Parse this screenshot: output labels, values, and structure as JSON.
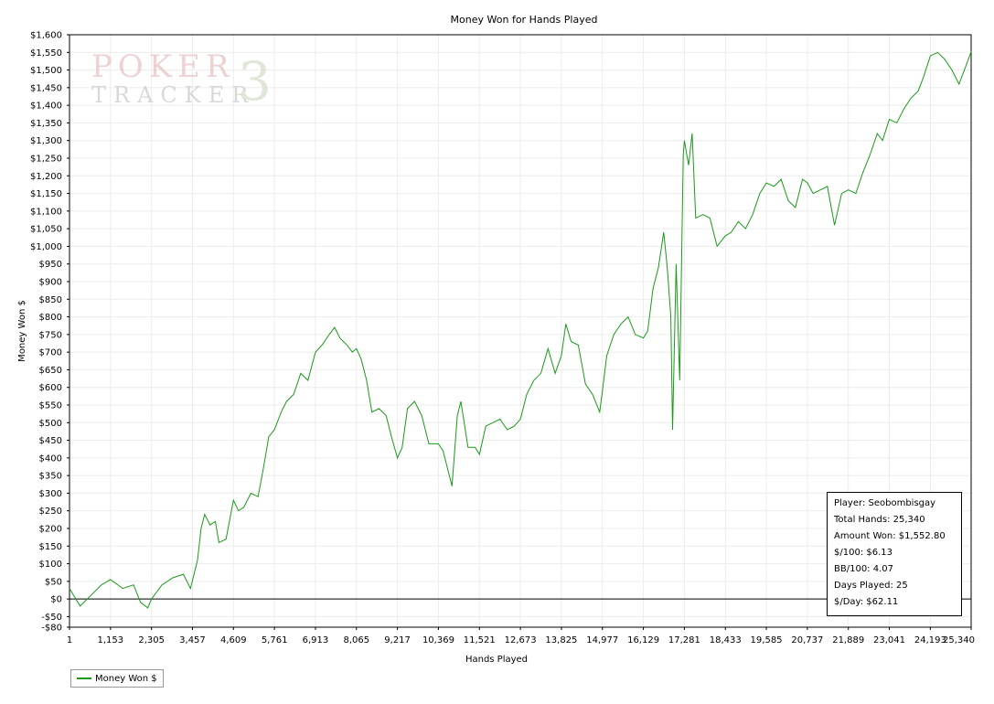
{
  "chart_data": {
    "type": "line",
    "title": "Money Won for Hands Played",
    "xlabel": "Hands Played",
    "ylabel": "Money Won $",
    "xlim": [
      1,
      25340
    ],
    "ylim": [
      -80,
      1600
    ],
    "x_ticks": [
      1,
      1153,
      2305,
      3457,
      4609,
      5761,
      6913,
      8065,
      9217,
      10369,
      11521,
      12673,
      13825,
      14977,
      16129,
      17281,
      18433,
      19585,
      20737,
      21889,
      23041,
      24193,
      25340
    ],
    "x_tick_labels": [
      "1",
      "1,153",
      "2,305",
      "3,457",
      "4,609",
      "5,761",
      "6,913",
      "8,065",
      "9,217",
      "10,369",
      "11,521",
      "12,673",
      "13,825",
      "14,977",
      "16,129",
      "17,281",
      "18,433",
      "19,585",
      "20,737",
      "21,889",
      "23,041",
      "24,193",
      "25,340"
    ],
    "y_ticks": [
      -80,
      -50,
      0,
      50,
      100,
      150,
      200,
      250,
      300,
      350,
      400,
      450,
      500,
      550,
      600,
      650,
      700,
      750,
      800,
      850,
      900,
      950,
      1000,
      1050,
      1100,
      1150,
      1200,
      1250,
      1300,
      1350,
      1400,
      1450,
      1500,
      1550,
      1600
    ],
    "y_tick_labels": [
      "-$80",
      "-$50",
      "$0",
      "$50",
      "$100",
      "$150",
      "$200",
      "$250",
      "$300",
      "$350",
      "$400",
      "$450",
      "$500",
      "$550",
      "$600",
      "$650",
      "$700",
      "$750",
      "$800",
      "$850",
      "$900",
      "$950",
      "$1,000",
      "$1,050",
      "$1,100",
      "$1,150",
      "$1,200",
      "$1,250",
      "$1,300",
      "$1,350",
      "$1,400",
      "$1,450",
      "$1,500",
      "$1,550",
      "$1,600"
    ],
    "grid": true,
    "legend_position": "bottom-left",
    "series": [
      {
        "name": "Money Won $",
        "color": "#1a9a1a",
        "points": [
          [
            1,
            30
          ],
          [
            300,
            -20
          ],
          [
            600,
            10
          ],
          [
            900,
            40
          ],
          [
            1153,
            55
          ],
          [
            1500,
            30
          ],
          [
            1800,
            40
          ],
          [
            2000,
            -10
          ],
          [
            2200,
            -25
          ],
          [
            2305,
            0
          ],
          [
            2600,
            40
          ],
          [
            2900,
            60
          ],
          [
            3200,
            70
          ],
          [
            3400,
            30
          ],
          [
            3600,
            110
          ],
          [
            3700,
            200
          ],
          [
            3800,
            240
          ],
          [
            3950,
            210
          ],
          [
            4100,
            220
          ],
          [
            4200,
            160
          ],
          [
            4400,
            170
          ],
          [
            4609,
            280
          ],
          [
            4750,
            250
          ],
          [
            4900,
            260
          ],
          [
            5100,
            300
          ],
          [
            5300,
            290
          ],
          [
            5450,
            370
          ],
          [
            5600,
            460
          ],
          [
            5761,
            480
          ],
          [
            5950,
            530
          ],
          [
            6100,
            560
          ],
          [
            6300,
            580
          ],
          [
            6500,
            640
          ],
          [
            6700,
            620
          ],
          [
            6913,
            700
          ],
          [
            7100,
            720
          ],
          [
            7300,
            750
          ],
          [
            7450,
            770
          ],
          [
            7600,
            740
          ],
          [
            7800,
            720
          ],
          [
            7950,
            700
          ],
          [
            8065,
            710
          ],
          [
            8200,
            680
          ],
          [
            8350,
            620
          ],
          [
            8500,
            530
          ],
          [
            8700,
            540
          ],
          [
            8900,
            520
          ],
          [
            9050,
            460
          ],
          [
            9217,
            400
          ],
          [
            9350,
            430
          ],
          [
            9500,
            540
          ],
          [
            9700,
            560
          ],
          [
            9900,
            520
          ],
          [
            10100,
            440
          ],
          [
            10369,
            440
          ],
          [
            10500,
            420
          ],
          [
            10650,
            360
          ],
          [
            10750,
            320
          ],
          [
            10900,
            520
          ],
          [
            11000,
            560
          ],
          [
            11200,
            430
          ],
          [
            11400,
            430
          ],
          [
            11521,
            410
          ],
          [
            11700,
            490
          ],
          [
            11900,
            500
          ],
          [
            12100,
            510
          ],
          [
            12300,
            480
          ],
          [
            12500,
            490
          ],
          [
            12673,
            510
          ],
          [
            12850,
            580
          ],
          [
            13050,
            620
          ],
          [
            13250,
            640
          ],
          [
            13450,
            710
          ],
          [
            13650,
            640
          ],
          [
            13825,
            690
          ],
          [
            13950,
            780
          ],
          [
            14100,
            730
          ],
          [
            14300,
            720
          ],
          [
            14500,
            610
          ],
          [
            14700,
            580
          ],
          [
            14900,
            530
          ],
          [
            14977,
            590
          ],
          [
            15100,
            690
          ],
          [
            15300,
            750
          ],
          [
            15500,
            780
          ],
          [
            15700,
            800
          ],
          [
            15900,
            750
          ],
          [
            16129,
            740
          ],
          [
            16250,
            760
          ],
          [
            16400,
            880
          ],
          [
            16550,
            940
          ],
          [
            16700,
            1040
          ],
          [
            16800,
            940
          ],
          [
            16900,
            800
          ],
          [
            16950,
            480
          ],
          [
            17050,
            950
          ],
          [
            17150,
            620
          ],
          [
            17250,
            1260
          ],
          [
            17281,
            1300
          ],
          [
            17400,
            1230
          ],
          [
            17500,
            1320
          ],
          [
            17600,
            1080
          ],
          [
            17800,
            1090
          ],
          [
            18000,
            1080
          ],
          [
            18200,
            1000
          ],
          [
            18433,
            1030
          ],
          [
            18600,
            1040
          ],
          [
            18800,
            1070
          ],
          [
            19000,
            1050
          ],
          [
            19200,
            1090
          ],
          [
            19400,
            1150
          ],
          [
            19585,
            1180
          ],
          [
            19800,
            1170
          ],
          [
            20000,
            1190
          ],
          [
            20200,
            1130
          ],
          [
            20400,
            1110
          ],
          [
            20600,
            1190
          ],
          [
            20737,
            1180
          ],
          [
            20900,
            1150
          ],
          [
            21100,
            1160
          ],
          [
            21300,
            1170
          ],
          [
            21500,
            1060
          ],
          [
            21700,
            1150
          ],
          [
            21889,
            1160
          ],
          [
            22100,
            1150
          ],
          [
            22300,
            1210
          ],
          [
            22500,
            1260
          ],
          [
            22700,
            1320
          ],
          [
            22850,
            1300
          ],
          [
            23041,
            1360
          ],
          [
            23250,
            1350
          ],
          [
            23450,
            1390
          ],
          [
            23650,
            1420
          ],
          [
            23850,
            1440
          ],
          [
            24000,
            1480
          ],
          [
            24193,
            1540
          ],
          [
            24400,
            1550
          ],
          [
            24600,
            1530
          ],
          [
            24800,
            1500
          ],
          [
            25000,
            1460
          ],
          [
            25150,
            1500
          ],
          [
            25340,
            1552
          ]
        ]
      }
    ]
  },
  "stats": {
    "player": "Player: Seobombisgay",
    "total_hands": "Total Hands: 25,340",
    "amount_won": "Amount Won: $1,552.80",
    "per_100": "$/100: $6.13",
    "bb_per_100": "BB/100: 4.07",
    "days_played": "Days Played: 25",
    "per_day": "$/Day: $62.11"
  },
  "legend": {
    "label": "Money Won $"
  },
  "watermark": {
    "line1": "POKER",
    "line2": "TRACKER",
    "mark": "3"
  }
}
